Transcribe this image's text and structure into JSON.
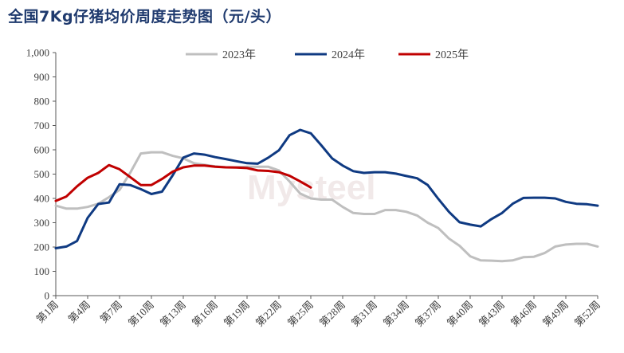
{
  "title": "全国7Kg仔猪均价周度走势图（元/头）",
  "watermark": "Mysteel",
  "chart_data": {
    "type": "line",
    "ylim": [
      0,
      1000
    ],
    "yticks": [
      0,
      100,
      200,
      300,
      400,
      500,
      600,
      700,
      800,
      900,
      1000
    ],
    "ytick_labels": [
      "0",
      "100",
      "200",
      "300",
      "400",
      "500",
      "600",
      "700",
      "800",
      "900",
      "1,000"
    ],
    "xtick_labels": [
      "第1周",
      "第4周",
      "第7周",
      "第10周",
      "第13周",
      "第16周",
      "第19周",
      "第22周",
      "第25周",
      "第28周",
      "第31周",
      "第34周",
      "第37周",
      "第40周",
      "第43周",
      "第46周",
      "第49周",
      "第52周"
    ],
    "xtick_weeks": [
      1,
      4,
      7,
      10,
      13,
      16,
      19,
      22,
      25,
      28,
      31,
      34,
      37,
      40,
      43,
      46,
      49,
      52
    ],
    "grid": false,
    "legend_position": "top-center",
    "series": [
      {
        "name": "2023年",
        "color": "#bfbfbf",
        "weeks_start": 1,
        "values": [
          370,
          358,
          358,
          365,
          378,
          405,
          435,
          505,
          585,
          590,
          590,
          575,
          565,
          545,
          538,
          532,
          528,
          528,
          530,
          530,
          530,
          515,
          470,
          420,
          400,
          395,
          395,
          365,
          340,
          336,
          336,
          352,
          352,
          345,
          330,
          300,
          278,
          235,
          205,
          162,
          145,
          144,
          142,
          145,
          158,
          160,
          175,
          202,
          210,
          213,
          213,
          202
        ]
      },
      {
        "name": "2024年",
        "color": "#0f3a82",
        "weeks_start": 1,
        "values": [
          195,
          202,
          225,
          320,
          377,
          383,
          458,
          455,
          438,
          418,
          428,
          495,
          568,
          585,
          580,
          570,
          562,
          553,
          545,
          543,
          568,
          598,
          660,
          682,
          668,
          618,
          565,
          535,
          512,
          505,
          508,
          508,
          502,
          492,
          483,
          455,
          398,
          345,
          302,
          292,
          285,
          315,
          340,
          378,
          402,
          403,
          403,
          400,
          386,
          378,
          376,
          370
        ]
      },
      {
        "name": "2025年",
        "color": "#c00000",
        "weeks_start": 1,
        "values": [
          390,
          408,
          450,
          485,
          505,
          537,
          520,
          488,
          455,
          455,
          480,
          510,
          528,
          535,
          535,
          530,
          528,
          527,
          525,
          515,
          513,
          508,
          493,
          470,
          445
        ]
      }
    ]
  }
}
